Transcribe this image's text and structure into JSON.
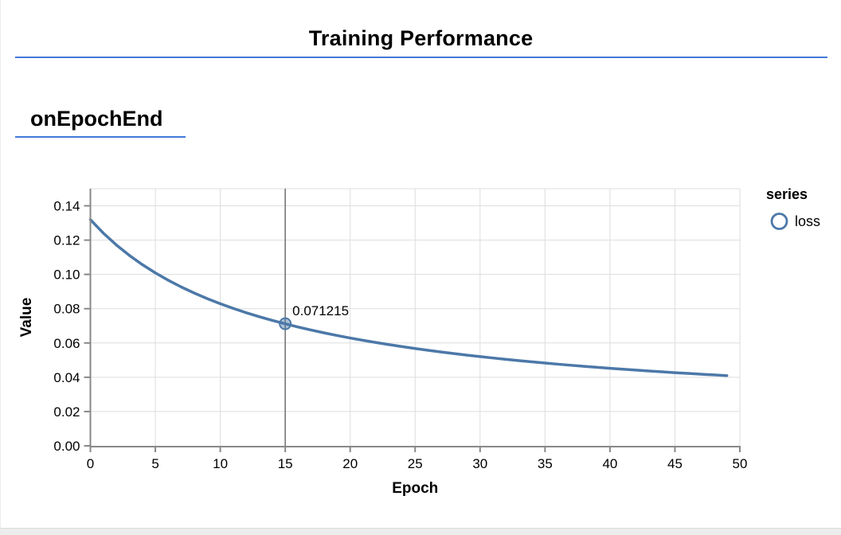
{
  "header": {
    "title": "Training Performance"
  },
  "section": {
    "title": "onEpochEnd"
  },
  "accent_color": "#4379d8",
  "chart_data": {
    "type": "line",
    "title": "Training Performance",
    "xlabel": "Epoch",
    "ylabel": "Value",
    "xlim": [
      0,
      50
    ],
    "ylim": [
      0,
      0.15
    ],
    "grid": true,
    "x_ticks": {
      "values": [
        0,
        5,
        10,
        15,
        20,
        25,
        30,
        35,
        40,
        45,
        50
      ],
      "labels": [
        "0",
        "5",
        "10",
        "15",
        "20",
        "25",
        "30",
        "35",
        "40",
        "45",
        "50"
      ]
    },
    "y_ticks": {
      "values": [
        0,
        0.02,
        0.04,
        0.06,
        0.08,
        0.1,
        0.12,
        0.14
      ],
      "labels": [
        "0.00",
        "0.02",
        "0.04",
        "0.06",
        "0.08",
        "0.10",
        "0.12",
        "0.14"
      ]
    },
    "legend": {
      "title": "series",
      "position": "right",
      "entries": [
        {
          "label": "loss",
          "color": "#4c78a8",
          "symbol": "circle"
        }
      ]
    },
    "series": [
      {
        "name": "loss",
        "color": "#4c78a8",
        "x": [
          0,
          1,
          2,
          3,
          4,
          5,
          6,
          7,
          8,
          9,
          10,
          11,
          12,
          13,
          14,
          15,
          16,
          17,
          18,
          19,
          20,
          21,
          22,
          23,
          24,
          25,
          26,
          27,
          28,
          29,
          30,
          31,
          32,
          33,
          34,
          35,
          36,
          37,
          38,
          39,
          40,
          41,
          42,
          43,
          44,
          45,
          46,
          47,
          48,
          49
        ],
        "values": [
          0.131948,
          0.124052,
          0.117158,
          0.111086,
          0.105698,
          0.100885,
          0.096559,
          0.092649,
          0.089099,
          0.085861,
          0.082896,
          0.08017,
          0.077655,
          0.075329,
          0.07317,
          0.071215,
          0.069288,
          0.067536,
          0.065894,
          0.064353,
          0.062903,
          0.061537,
          0.060246,
          0.059026,
          0.057871,
          0.056775,
          0.055734,
          0.054745,
          0.053802,
          0.052905,
          0.052048,
          0.051229,
          0.050446,
          0.049696,
          0.048978,
          0.048289,
          0.047629,
          0.046994,
          0.046383,
          0.045796,
          0.045231,
          0.044686,
          0.04416,
          0.043654,
          0.043164,
          0.042692,
          0.042236,
          0.041794,
          0.041366,
          0.040953
        ]
      }
    ],
    "highlight": {
      "x": 15,
      "value": 0.071215,
      "label": "0.071215"
    },
    "colors": {
      "line": "#4c78a8",
      "grid": "#dddddd",
      "axis": "#888888",
      "highlight_rule": "#6e6e6e"
    }
  }
}
